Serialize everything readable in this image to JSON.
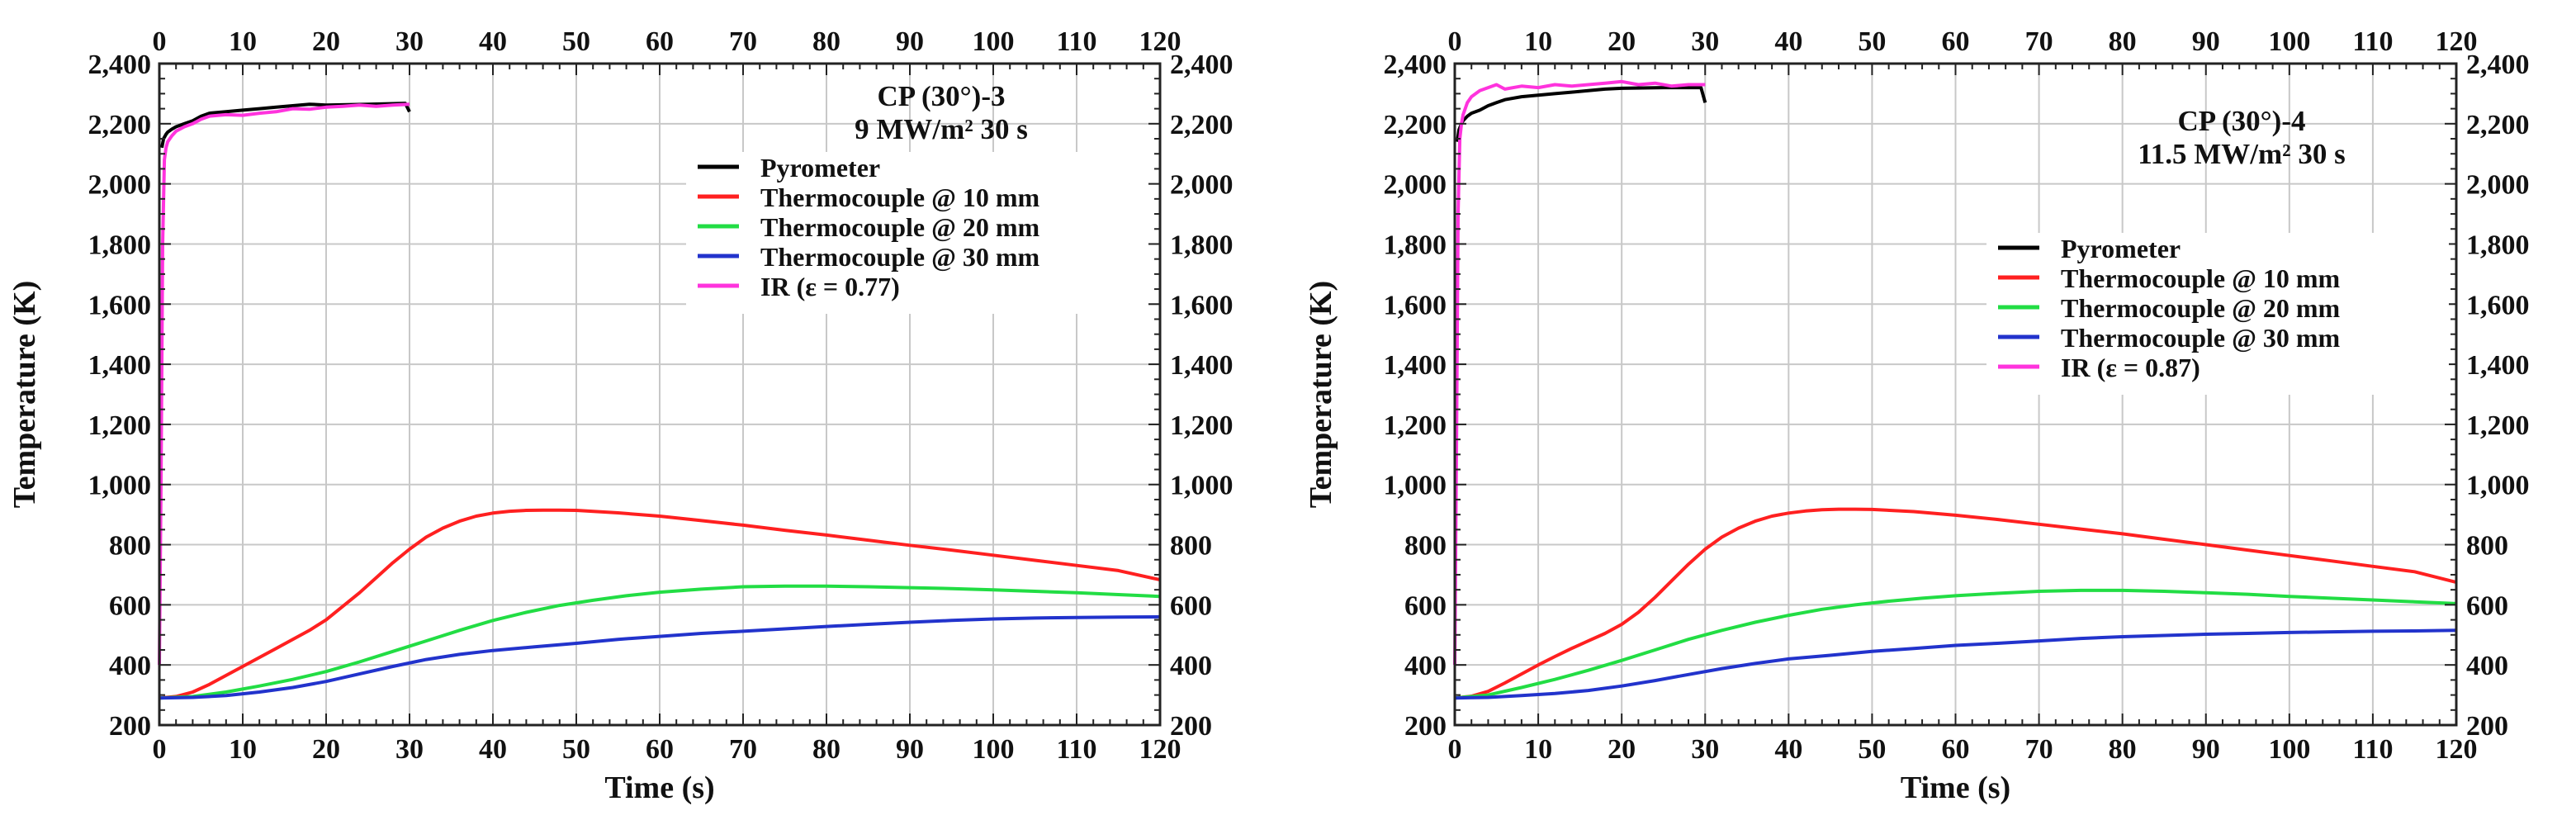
{
  "chart_data": [
    {
      "type": "line",
      "annotation_lines": [
        "CP (30°)-3",
        "9 MW/m² 30 s"
      ],
      "xlabel": "Time (s)",
      "ylabel": "Temperature (K)",
      "xlim": [
        0,
        120
      ],
      "ylim": [
        200,
        2400
      ],
      "x_ticks": [
        0,
        10,
        20,
        30,
        40,
        50,
        60,
        70,
        80,
        90,
        100,
        110,
        120
      ],
      "x_tick_labels": [
        "0",
        "10",
        "20",
        "30",
        "40",
        "50",
        "60",
        "70",
        "80",
        "90",
        "100",
        "110",
        "120"
      ],
      "y_ticks": [
        200,
        400,
        600,
        800,
        1000,
        1200,
        1400,
        1600,
        1800,
        2000,
        2200,
        2400
      ],
      "y_tick_labels": [
        "200",
        "400",
        "600",
        "800",
        "1,000",
        "1,200",
        "1,400",
        "1,600",
        "1,800",
        "2,000",
        "2,200",
        "2,400"
      ],
      "grid": true,
      "legend_position": "upper-right",
      "series": [
        {
          "name": "Pyrometer",
          "color": "#000000",
          "x": [
            0.3,
            0.5,
            0.8,
            1,
            1.5,
            2,
            3,
            4,
            5,
            6,
            8,
            10,
            12,
            14,
            16,
            18,
            20,
            25,
            29.5,
            30
          ],
          "y": [
            2120,
            2150,
            2165,
            2172,
            2182,
            2190,
            2200,
            2210,
            2225,
            2235,
            2240,
            2245,
            2250,
            2255,
            2260,
            2265,
            2262,
            2265,
            2268,
            2240
          ]
        },
        {
          "name": "Thermocouple @ 10 mm",
          "color": "#ff2020",
          "x": [
            0,
            2,
            4,
            6,
            8,
            10,
            12,
            14,
            16,
            18,
            20,
            22,
            24,
            26,
            28,
            30,
            32,
            34,
            36,
            38,
            40,
            42,
            44,
            46,
            48,
            50,
            55,
            60,
            65,
            70,
            75,
            80,
            85,
            90,
            95,
            100,
            105,
            110,
            115,
            120
          ],
          "y": [
            290,
            295,
            310,
            335,
            365,
            395,
            425,
            455,
            485,
            515,
            550,
            595,
            640,
            690,
            740,
            785,
            825,
            855,
            878,
            895,
            905,
            911,
            914,
            915,
            915,
            914,
            906,
            895,
            880,
            865,
            848,
            832,
            815,
            798,
            782,
            765,
            748,
            731,
            714,
            683
          ]
        },
        {
          "name": "Thermocouple @ 20 mm",
          "color": "#22dd44",
          "x": [
            0,
            4,
            8,
            12,
            16,
            20,
            24,
            28,
            32,
            36,
            40,
            44,
            48,
            52,
            56,
            60,
            65,
            70,
            75,
            80,
            85,
            90,
            95,
            100,
            105,
            110,
            115,
            120
          ],
          "y": [
            290,
            295,
            310,
            330,
            352,
            378,
            410,
            445,
            480,
            515,
            548,
            575,
            598,
            615,
            630,
            642,
            652,
            660,
            662,
            662,
            660,
            657,
            654,
            650,
            645,
            640,
            634,
            628
          ]
        },
        {
          "name": "Thermocouple @ 30 mm",
          "color": "#2233cc",
          "x": [
            0,
            4,
            8,
            12,
            16,
            20,
            24,
            28,
            32,
            36,
            40,
            45,
            50,
            55,
            60,
            65,
            70,
            75,
            80,
            85,
            90,
            95,
            100,
            105,
            110,
            115,
            120
          ],
          "y": [
            290,
            292,
            298,
            310,
            325,
            345,
            370,
            395,
            418,
            435,
            448,
            460,
            472,
            485,
            495,
            505,
            512,
            520,
            528,
            535,
            542,
            548,
            553,
            556,
            558,
            559,
            560
          ]
        },
        {
          "name": "IR (ε = 0.77)",
          "color": "#ff33dd",
          "x": [
            0,
            0.2,
            0.4,
            0.6,
            0.8,
            1,
            1.5,
            2,
            3,
            4,
            5,
            6,
            8,
            10,
            12,
            14,
            16,
            18,
            20,
            22,
            24,
            26,
            28,
            30
          ],
          "y": [
            400,
            1000,
            1800,
            2080,
            2120,
            2140,
            2160,
            2175,
            2190,
            2200,
            2215,
            2225,
            2230,
            2228,
            2235,
            2240,
            2250,
            2248,
            2255,
            2258,
            2262,
            2258,
            2262,
            2265
          ]
        }
      ]
    },
    {
      "type": "line",
      "annotation_lines": [
        "CP (30°)-4",
        "11.5 MW/m² 30 s"
      ],
      "xlabel": "Time (s)",
      "ylabel": "Temperature (K)",
      "xlim": [
        0,
        120
      ],
      "ylim": [
        200,
        2400
      ],
      "x_ticks": [
        0,
        10,
        20,
        30,
        40,
        50,
        60,
        70,
        80,
        90,
        100,
        110,
        120
      ],
      "x_tick_labels": [
        "0",
        "10",
        "20",
        "30",
        "40",
        "50",
        "60",
        "70",
        "80",
        "90",
        "100",
        "110",
        "120"
      ],
      "y_ticks": [
        200,
        400,
        600,
        800,
        1000,
        1200,
        1400,
        1600,
        1800,
        2000,
        2200,
        2400
      ],
      "y_tick_labels": [
        "200",
        "400",
        "600",
        "800",
        "1,000",
        "1,200",
        "1,400",
        "1,600",
        "1,800",
        "2,000",
        "2,200",
        "2,400"
      ],
      "grid": true,
      "legend_position": "upper-right",
      "series": [
        {
          "name": "Pyrometer",
          "color": "#000000",
          "x": [
            0.3,
            0.5,
            0.8,
            1,
            1.5,
            2,
            3,
            4,
            5,
            6,
            8,
            10,
            12,
            14,
            16,
            18,
            20,
            25,
            29.5,
            30
          ],
          "y": [
            2140,
            2180,
            2200,
            2210,
            2225,
            2235,
            2245,
            2260,
            2270,
            2280,
            2290,
            2295,
            2300,
            2305,
            2310,
            2315,
            2318,
            2320,
            2320,
            2270
          ]
        },
        {
          "name": "Thermocouple @ 10 mm",
          "color": "#ff2020",
          "x": [
            0,
            2,
            4,
            6,
            8,
            10,
            12,
            14,
            16,
            18,
            20,
            22,
            24,
            26,
            28,
            30,
            32,
            34,
            36,
            38,
            40,
            42,
            44,
            46,
            48,
            50,
            55,
            60,
            65,
            70,
            75,
            80,
            85,
            90,
            95,
            100,
            105,
            110,
            115,
            120
          ],
          "y": [
            290,
            296,
            312,
            340,
            370,
            400,
            428,
            455,
            480,
            505,
            535,
            575,
            625,
            680,
            735,
            785,
            825,
            855,
            878,
            895,
            905,
            912,
            916,
            918,
            918,
            917,
            910,
            898,
            884,
            868,
            852,
            836,
            818,
            800,
            782,
            764,
            746,
            728,
            710,
            675
          ]
        },
        {
          "name": "Thermocouple @ 20 mm",
          "color": "#22dd44",
          "x": [
            0,
            4,
            8,
            12,
            16,
            20,
            24,
            28,
            32,
            36,
            40,
            44,
            48,
            52,
            56,
            60,
            65,
            70,
            75,
            80,
            85,
            90,
            95,
            100,
            105,
            110,
            115,
            120
          ],
          "y": [
            290,
            300,
            325,
            352,
            382,
            415,
            450,
            485,
            515,
            542,
            565,
            585,
            600,
            612,
            622,
            630,
            638,
            645,
            648,
            648,
            645,
            640,
            635,
            628,
            622,
            616,
            610,
            604
          ]
        },
        {
          "name": "Thermocouple @ 30 mm",
          "color": "#2233cc",
          "x": [
            0,
            4,
            8,
            12,
            16,
            20,
            24,
            28,
            32,
            36,
            40,
            45,
            50,
            55,
            60,
            65,
            70,
            75,
            80,
            85,
            90,
            95,
            100,
            105,
            110,
            115,
            120
          ],
          "y": [
            290,
            292,
            298,
            305,
            315,
            330,
            348,
            368,
            388,
            405,
            420,
            432,
            445,
            455,
            465,
            472,
            480,
            488,
            494,
            498,
            502,
            505,
            508,
            510,
            512,
            513,
            515
          ]
        },
        {
          "name": "IR (ε = 0.87)",
          "color": "#ff33dd",
          "x": [
            0,
            0.2,
            0.4,
            0.6,
            0.8,
            1,
            1.5,
            2,
            2.5,
            3,
            4,
            5,
            6,
            8,
            10,
            12,
            14,
            16,
            18,
            20,
            22,
            24,
            26,
            28,
            30
          ],
          "y": [
            400,
            1100,
            1900,
            2150,
            2200,
            2230,
            2270,
            2290,
            2300,
            2310,
            2320,
            2330,
            2315,
            2325,
            2320,
            2330,
            2325,
            2330,
            2335,
            2340,
            2330,
            2335,
            2325,
            2330,
            2330
          ]
        }
      ]
    }
  ]
}
